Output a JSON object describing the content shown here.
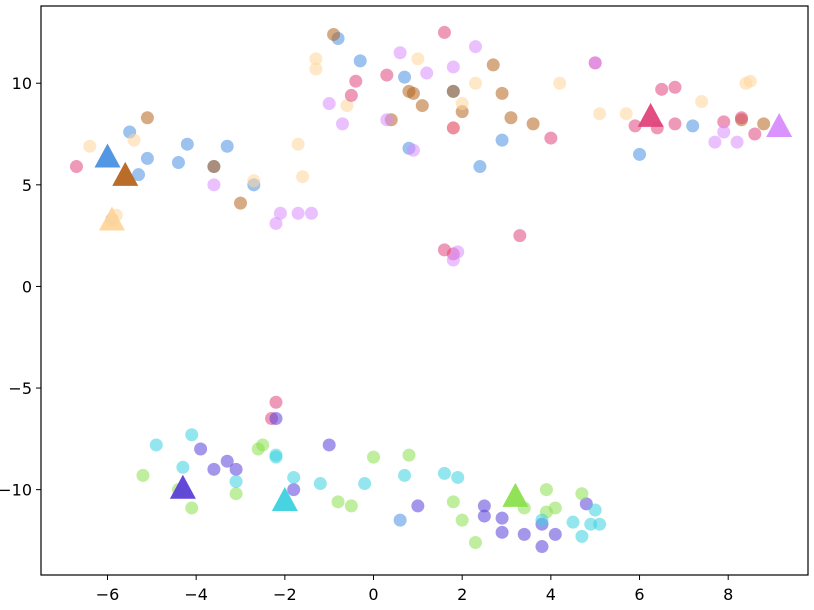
{
  "chart_data": {
    "type": "scatter",
    "xlim": [
      -7.5,
      9.8
    ],
    "ylim": [
      -14.2,
      13.8
    ],
    "x_ticks": [
      -6,
      -4,
      -2,
      0,
      2,
      4,
      6,
      8
    ],
    "y_ticks": [
      -10,
      -5,
      0,
      5,
      10
    ],
    "x_tick_labels": [
      "−6",
      "−4",
      "−2",
      "0",
      "2",
      "4",
      "6",
      "8"
    ],
    "y_tick_labels": [
      "−10",
      "−5",
      "0",
      "5",
      "10"
    ],
    "grid": false,
    "legend": "none",
    "marker_alpha": 0.55,
    "series": [
      {
        "color": "#4a90e2",
        "centroid": [
          -6.0,
          6.3
        ],
        "points": [
          [
            -5.5,
            7.6
          ],
          [
            -5.1,
            6.3
          ],
          [
            -5.3,
            5.5
          ],
          [
            -4.2,
            7.0
          ],
          [
            -4.4,
            6.1
          ],
          [
            -3.6,
            5.9
          ],
          [
            -3.3,
            6.9
          ],
          [
            -2.7,
            5.0
          ],
          [
            -5.9,
            3.3
          ],
          [
            -0.8,
            12.2
          ],
          [
            -0.3,
            11.1
          ],
          [
            0.7,
            10.3
          ],
          [
            0.8,
            6.8
          ],
          [
            1.8,
            9.6
          ],
          [
            2.4,
            5.9
          ],
          [
            2.9,
            7.2
          ],
          [
            6.0,
            6.5
          ],
          [
            7.2,
            7.9
          ],
          [
            0.6,
            -11.5
          ]
        ]
      },
      {
        "color": "#b5651d",
        "centroid": [
          -5.6,
          5.4
        ],
        "points": [
          [
            -5.1,
            8.3
          ],
          [
            -3.6,
            5.9
          ],
          [
            -3.0,
            4.1
          ],
          [
            -0.9,
            12.4
          ],
          [
            0.4,
            8.2
          ],
          [
            0.8,
            9.6
          ],
          [
            1.1,
            8.9
          ],
          [
            0.9,
            9.5
          ],
          [
            1.8,
            9.6
          ],
          [
            2.0,
            8.6
          ],
          [
            2.7,
            10.9
          ],
          [
            2.9,
            9.5
          ],
          [
            3.1,
            8.3
          ],
          [
            3.6,
            8.0
          ],
          [
            8.3,
            8.2
          ],
          [
            8.8,
            8.0
          ]
        ]
      },
      {
        "color": "#ffd59a",
        "centroid": [
          -5.9,
          3.2
        ],
        "points": [
          [
            -6.4,
            6.9
          ],
          [
            -5.4,
            7.2
          ],
          [
            -5.8,
            3.5
          ],
          [
            -2.7,
            5.2
          ],
          [
            -1.7,
            7.0
          ],
          [
            -1.6,
            5.4
          ],
          [
            -1.3,
            10.7
          ],
          [
            -1.3,
            11.2
          ],
          [
            -0.6,
            8.9
          ],
          [
            1.0,
            11.2
          ],
          [
            1.8,
            7.8
          ],
          [
            2.0,
            9.0
          ],
          [
            2.3,
            10.0
          ],
          [
            4.2,
            10.0
          ],
          [
            5.1,
            8.5
          ],
          [
            5.7,
            8.5
          ],
          [
            7.4,
            9.1
          ],
          [
            8.4,
            10.0
          ],
          [
            8.5,
            10.1
          ]
        ]
      },
      {
        "color": "#e0457b",
        "centroid": [
          6.25,
          8.3
        ],
        "points": [
          [
            -6.7,
            5.9
          ],
          [
            -0.4,
            10.1
          ],
          [
            -0.5,
            9.4
          ],
          [
            0.3,
            10.4
          ],
          [
            1.6,
            12.5
          ],
          [
            1.8,
            7.8
          ],
          [
            1.6,
            1.8
          ],
          [
            1.8,
            1.6
          ],
          [
            3.3,
            2.5
          ],
          [
            4.0,
            7.3
          ],
          [
            5.0,
            11.0
          ],
          [
            5.9,
            7.9
          ],
          [
            6.4,
            7.8
          ],
          [
            6.5,
            9.7
          ],
          [
            6.8,
            9.8
          ],
          [
            6.8,
            8.0
          ],
          [
            7.9,
            8.1
          ],
          [
            8.3,
            8.3
          ],
          [
            8.6,
            7.5
          ],
          [
            -2.2,
            -5.7
          ],
          [
            -2.3,
            -6.5
          ]
        ]
      },
      {
        "color": "#d88cff",
        "centroid": [
          9.15,
          7.8
        ],
        "points": [
          [
            -3.6,
            5.0
          ],
          [
            -2.1,
            3.6
          ],
          [
            -2.2,
            3.1
          ],
          [
            -1.7,
            3.6
          ],
          [
            -1.4,
            3.6
          ],
          [
            -1.0,
            9.0
          ],
          [
            -0.7,
            8.0
          ],
          [
            0.3,
            8.2
          ],
          [
            0.6,
            11.5
          ],
          [
            0.9,
            6.7
          ],
          [
            1.2,
            10.5
          ],
          [
            1.8,
            10.8
          ],
          [
            2.3,
            11.8
          ],
          [
            1.8,
            1.3
          ],
          [
            1.9,
            1.7
          ],
          [
            5.0,
            11.0
          ],
          [
            7.7,
            7.1
          ],
          [
            7.9,
            7.6
          ],
          [
            8.2,
            7.1
          ]
        ]
      },
      {
        "color": "#5a3fd8",
        "centroid": [
          -4.3,
          -10.0
        ],
        "points": [
          [
            -3.9,
            -8.0
          ],
          [
            -3.6,
            -9.0
          ],
          [
            -3.3,
            -8.6
          ],
          [
            -3.1,
            -9.0
          ],
          [
            -2.2,
            -6.5
          ],
          [
            -1.8,
            -10.0
          ],
          [
            -1.0,
            -7.8
          ],
          [
            1.0,
            -10.8
          ],
          [
            2.5,
            -10.8
          ],
          [
            2.5,
            -11.3
          ],
          [
            2.9,
            -11.4
          ],
          [
            2.9,
            -12.1
          ],
          [
            3.4,
            -12.2
          ],
          [
            3.8,
            -11.7
          ],
          [
            3.8,
            -12.8
          ],
          [
            4.1,
            -12.2
          ],
          [
            4.8,
            -10.7
          ]
        ]
      },
      {
        "color": "#8be04e",
        "centroid": [
          3.2,
          -10.4
        ],
        "points": [
          [
            -5.2,
            -9.3
          ],
          [
            -4.4,
            -10.0
          ],
          [
            -4.1,
            -10.9
          ],
          [
            -3.1,
            -10.2
          ],
          [
            -2.6,
            -8.0
          ],
          [
            -2.5,
            -7.8
          ],
          [
            -0.8,
            -10.6
          ],
          [
            -0.5,
            -10.8
          ],
          [
            0.0,
            -8.4
          ],
          [
            0.8,
            -8.3
          ],
          [
            1.8,
            -10.6
          ],
          [
            2.0,
            -11.5
          ],
          [
            2.3,
            -12.6
          ],
          [
            3.4,
            -10.9
          ],
          [
            3.9,
            -10.0
          ],
          [
            3.9,
            -11.1
          ],
          [
            4.1,
            -10.9
          ],
          [
            4.7,
            -10.2
          ]
        ]
      },
      {
        "color": "#3dd1e0",
        "centroid": [
          -2.0,
          -10.6
        ],
        "points": [
          [
            -4.9,
            -7.8
          ],
          [
            -4.3,
            -8.9
          ],
          [
            -4.1,
            -7.3
          ],
          [
            -3.1,
            -9.6
          ],
          [
            -2.2,
            -8.3
          ],
          [
            -2.2,
            -8.4
          ],
          [
            -1.8,
            -9.4
          ],
          [
            -1.2,
            -9.7
          ],
          [
            -0.2,
            -9.7
          ],
          [
            0.7,
            -9.3
          ],
          [
            1.6,
            -9.2
          ],
          [
            1.9,
            -9.4
          ],
          [
            3.8,
            -11.5
          ],
          [
            4.5,
            -11.6
          ],
          [
            4.7,
            -12.3
          ],
          [
            4.9,
            -11.7
          ],
          [
            5.0,
            -11.0
          ],
          [
            5.1,
            -11.7
          ]
        ]
      }
    ]
  }
}
